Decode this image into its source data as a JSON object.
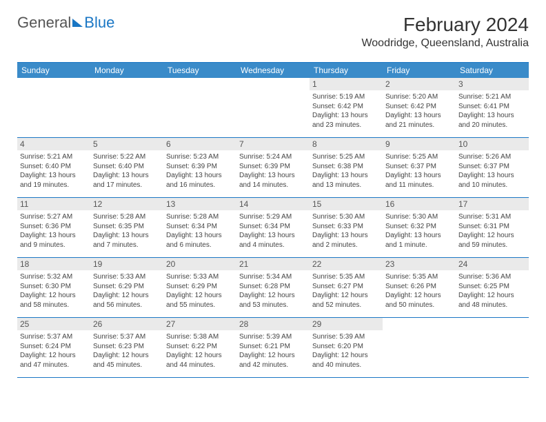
{
  "logo": {
    "word1": "General",
    "word2": "Blue"
  },
  "title": "February 2024",
  "location": "Woodridge, Queensland, Australia",
  "colors": {
    "brand_blue": "#1976c4",
    "header_blue": "#3a8bc9",
    "daynum_bg": "#eaeaea",
    "text": "#333333",
    "background": "#ffffff"
  },
  "daysOfWeek": [
    "Sunday",
    "Monday",
    "Tuesday",
    "Wednesday",
    "Thursday",
    "Friday",
    "Saturday"
  ],
  "weeks": [
    [
      {
        "empty": true
      },
      {
        "empty": true
      },
      {
        "empty": true
      },
      {
        "empty": true
      },
      {
        "day": "1",
        "sunrise": "Sunrise: 5:19 AM",
        "sunset": "Sunset: 6:42 PM",
        "daylight1": "Daylight: 13 hours",
        "daylight2": "and 23 minutes."
      },
      {
        "day": "2",
        "sunrise": "Sunrise: 5:20 AM",
        "sunset": "Sunset: 6:42 PM",
        "daylight1": "Daylight: 13 hours",
        "daylight2": "and 21 minutes."
      },
      {
        "day": "3",
        "sunrise": "Sunrise: 5:21 AM",
        "sunset": "Sunset: 6:41 PM",
        "daylight1": "Daylight: 13 hours",
        "daylight2": "and 20 minutes."
      }
    ],
    [
      {
        "day": "4",
        "sunrise": "Sunrise: 5:21 AM",
        "sunset": "Sunset: 6:40 PM",
        "daylight1": "Daylight: 13 hours",
        "daylight2": "and 19 minutes."
      },
      {
        "day": "5",
        "sunrise": "Sunrise: 5:22 AM",
        "sunset": "Sunset: 6:40 PM",
        "daylight1": "Daylight: 13 hours",
        "daylight2": "and 17 minutes."
      },
      {
        "day": "6",
        "sunrise": "Sunrise: 5:23 AM",
        "sunset": "Sunset: 6:39 PM",
        "daylight1": "Daylight: 13 hours",
        "daylight2": "and 16 minutes."
      },
      {
        "day": "7",
        "sunrise": "Sunrise: 5:24 AM",
        "sunset": "Sunset: 6:39 PM",
        "daylight1": "Daylight: 13 hours",
        "daylight2": "and 14 minutes."
      },
      {
        "day": "8",
        "sunrise": "Sunrise: 5:25 AM",
        "sunset": "Sunset: 6:38 PM",
        "daylight1": "Daylight: 13 hours",
        "daylight2": "and 13 minutes."
      },
      {
        "day": "9",
        "sunrise": "Sunrise: 5:25 AM",
        "sunset": "Sunset: 6:37 PM",
        "daylight1": "Daylight: 13 hours",
        "daylight2": "and 11 minutes."
      },
      {
        "day": "10",
        "sunrise": "Sunrise: 5:26 AM",
        "sunset": "Sunset: 6:37 PM",
        "daylight1": "Daylight: 13 hours",
        "daylight2": "and 10 minutes."
      }
    ],
    [
      {
        "day": "11",
        "sunrise": "Sunrise: 5:27 AM",
        "sunset": "Sunset: 6:36 PM",
        "daylight1": "Daylight: 13 hours",
        "daylight2": "and 9 minutes."
      },
      {
        "day": "12",
        "sunrise": "Sunrise: 5:28 AM",
        "sunset": "Sunset: 6:35 PM",
        "daylight1": "Daylight: 13 hours",
        "daylight2": "and 7 minutes."
      },
      {
        "day": "13",
        "sunrise": "Sunrise: 5:28 AM",
        "sunset": "Sunset: 6:34 PM",
        "daylight1": "Daylight: 13 hours",
        "daylight2": "and 6 minutes."
      },
      {
        "day": "14",
        "sunrise": "Sunrise: 5:29 AM",
        "sunset": "Sunset: 6:34 PM",
        "daylight1": "Daylight: 13 hours",
        "daylight2": "and 4 minutes."
      },
      {
        "day": "15",
        "sunrise": "Sunrise: 5:30 AM",
        "sunset": "Sunset: 6:33 PM",
        "daylight1": "Daylight: 13 hours",
        "daylight2": "and 2 minutes."
      },
      {
        "day": "16",
        "sunrise": "Sunrise: 5:30 AM",
        "sunset": "Sunset: 6:32 PM",
        "daylight1": "Daylight: 13 hours",
        "daylight2": "and 1 minute."
      },
      {
        "day": "17",
        "sunrise": "Sunrise: 5:31 AM",
        "sunset": "Sunset: 6:31 PM",
        "daylight1": "Daylight: 12 hours",
        "daylight2": "and 59 minutes."
      }
    ],
    [
      {
        "day": "18",
        "sunrise": "Sunrise: 5:32 AM",
        "sunset": "Sunset: 6:30 PM",
        "daylight1": "Daylight: 12 hours",
        "daylight2": "and 58 minutes."
      },
      {
        "day": "19",
        "sunrise": "Sunrise: 5:33 AM",
        "sunset": "Sunset: 6:29 PM",
        "daylight1": "Daylight: 12 hours",
        "daylight2": "and 56 minutes."
      },
      {
        "day": "20",
        "sunrise": "Sunrise: 5:33 AM",
        "sunset": "Sunset: 6:29 PM",
        "daylight1": "Daylight: 12 hours",
        "daylight2": "and 55 minutes."
      },
      {
        "day": "21",
        "sunrise": "Sunrise: 5:34 AM",
        "sunset": "Sunset: 6:28 PM",
        "daylight1": "Daylight: 12 hours",
        "daylight2": "and 53 minutes."
      },
      {
        "day": "22",
        "sunrise": "Sunrise: 5:35 AM",
        "sunset": "Sunset: 6:27 PM",
        "daylight1": "Daylight: 12 hours",
        "daylight2": "and 52 minutes."
      },
      {
        "day": "23",
        "sunrise": "Sunrise: 5:35 AM",
        "sunset": "Sunset: 6:26 PM",
        "daylight1": "Daylight: 12 hours",
        "daylight2": "and 50 minutes."
      },
      {
        "day": "24",
        "sunrise": "Sunrise: 5:36 AM",
        "sunset": "Sunset: 6:25 PM",
        "daylight1": "Daylight: 12 hours",
        "daylight2": "and 48 minutes."
      }
    ],
    [
      {
        "day": "25",
        "sunrise": "Sunrise: 5:37 AM",
        "sunset": "Sunset: 6:24 PM",
        "daylight1": "Daylight: 12 hours",
        "daylight2": "and 47 minutes."
      },
      {
        "day": "26",
        "sunrise": "Sunrise: 5:37 AM",
        "sunset": "Sunset: 6:23 PM",
        "daylight1": "Daylight: 12 hours",
        "daylight2": "and 45 minutes."
      },
      {
        "day": "27",
        "sunrise": "Sunrise: 5:38 AM",
        "sunset": "Sunset: 6:22 PM",
        "daylight1": "Daylight: 12 hours",
        "daylight2": "and 44 minutes."
      },
      {
        "day": "28",
        "sunrise": "Sunrise: 5:39 AM",
        "sunset": "Sunset: 6:21 PM",
        "daylight1": "Daylight: 12 hours",
        "daylight2": "and 42 minutes."
      },
      {
        "day": "29",
        "sunrise": "Sunrise: 5:39 AM",
        "sunset": "Sunset: 6:20 PM",
        "daylight1": "Daylight: 12 hours",
        "daylight2": "and 40 minutes."
      },
      {
        "empty": true
      },
      {
        "empty": true
      }
    ]
  ]
}
